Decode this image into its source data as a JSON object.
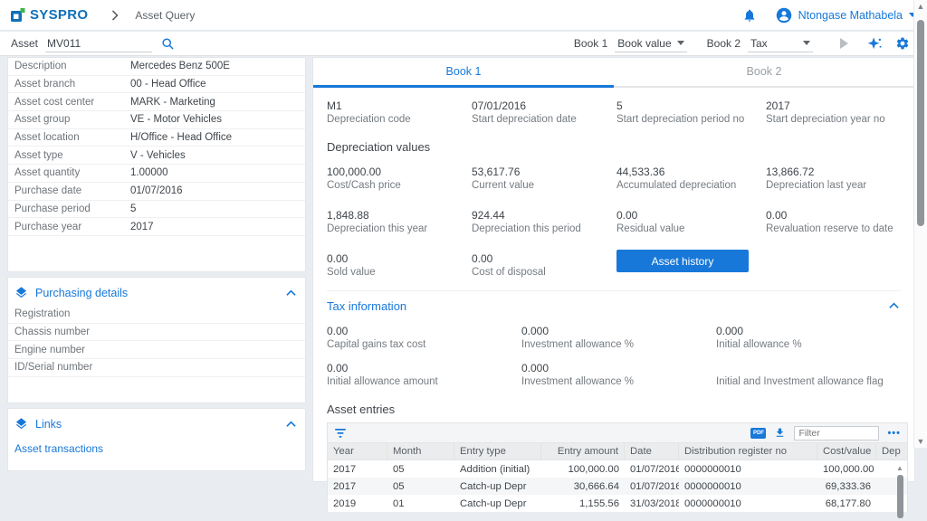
{
  "colors": {
    "primary_blue": "#1778d9",
    "logo_blue": "#0f6fb8",
    "logo_green": "#3db54a",
    "page_background": "#e9edf1"
  },
  "header": {
    "logo_text": "SYSPRO",
    "breadcrumb": "Asset Query",
    "user_name": "Ntongase Mathabela"
  },
  "toolbar": {
    "asset_label": "Asset",
    "asset_value": "MV011",
    "book1_label": "Book 1",
    "book1_value": "Book value",
    "book2_label": "Book 2",
    "book2_value": "Tax"
  },
  "asset_details": {
    "rows": [
      {
        "label": "Description",
        "value": "Mercedes Benz 500E"
      },
      {
        "label": "Asset branch",
        "value": "00 - Head Office"
      },
      {
        "label": "Asset cost center",
        "value": "MARK - Marketing"
      },
      {
        "label": "Asset group",
        "value": "VE - Motor Vehicles"
      },
      {
        "label": "Asset location",
        "value": "H/Office - Head Office"
      },
      {
        "label": "Asset type",
        "value": "V - Vehicles"
      },
      {
        "label": "Asset quantity",
        "value": "1.00000"
      },
      {
        "label": "Purchase date",
        "value": "01/07/2016"
      },
      {
        "label": "Purchase period",
        "value": "5"
      },
      {
        "label": "Purchase year",
        "value": "2017"
      }
    ]
  },
  "purchasing_details": {
    "title": "Purchasing details",
    "rows": [
      {
        "label": "Registration"
      },
      {
        "label": "Chassis number"
      },
      {
        "label": "Engine number"
      },
      {
        "label": "ID/Serial number"
      }
    ]
  },
  "links": {
    "title": "Links",
    "items": [
      "Asset transactions"
    ]
  },
  "book_panel": {
    "tabs": {
      "tab1": "Book 1",
      "tab2": "Book 2"
    },
    "depreciation_info": [
      {
        "value": "M1",
        "label": "Depreciation code"
      },
      {
        "value": "07/01/2016",
        "label": "Start depreciation date"
      },
      {
        "value": "5",
        "label": "Start depreciation period no"
      },
      {
        "value": "2017",
        "label": "Start depreciation year no"
      }
    ],
    "depreciation_values": {
      "title": "Depreciation values",
      "row1": [
        {
          "value": "100,000.00",
          "label": "Cost/Cash price"
        },
        {
          "value": "53,617.76",
          "label": "Current value"
        },
        {
          "value": "44,533.36",
          "label": "Accumulated depreciation"
        },
        {
          "value": "13,866.72",
          "label": "Depreciation last year"
        }
      ],
      "row2": [
        {
          "value": "1,848.88",
          "label": "Depreciation this year"
        },
        {
          "value": "924.44",
          "label": "Depreciation this period"
        },
        {
          "value": "0.00",
          "label": "Residual value"
        },
        {
          "value": "0.00",
          "label": "Revaluation reserve to date"
        }
      ],
      "row3": [
        {
          "value": "0.00",
          "label": "Sold value"
        },
        {
          "value": "0.00",
          "label": "Cost of disposal"
        }
      ],
      "history_button": "Asset history"
    },
    "tax_information": {
      "title": "Tax information",
      "row1": [
        {
          "value": "0.00",
          "label": "Capital gains tax cost"
        },
        {
          "value": "0.000",
          "label": "Investment allowance %"
        },
        {
          "value": "0.000",
          "label": "Initial allowance %"
        }
      ],
      "row2": [
        {
          "value": "0.00",
          "label": "Initial allowance amount"
        },
        {
          "value": "0.000",
          "label": "Investment allowance %"
        },
        {
          "value": "",
          "label": "Initial and Investment allowance flag"
        }
      ]
    },
    "asset_entries": {
      "title": "Asset entries",
      "filter_placeholder": "Filter",
      "columns": [
        "Year",
        "Month",
        "Entry type",
        "Entry amount",
        "Date",
        "Distribution register no",
        "Cost/value",
        "Dep"
      ],
      "right_aligned_columns": [
        3,
        6
      ],
      "rows": [
        [
          "2017",
          "05",
          "Addition (initial)",
          "100,000.00",
          "01/07/2016",
          "0000000010",
          "100,000.00",
          ""
        ],
        [
          "2017",
          "05",
          "Catch-up Depr",
          "30,666.64",
          "01/07/2016",
          "0000000010",
          "69,333.36",
          ""
        ],
        [
          "2019",
          "01",
          "Catch-up Depr",
          "1,155.56",
          "31/03/2018",
          "0000000010",
          "68,177.80",
          ""
        ]
      ]
    }
  }
}
